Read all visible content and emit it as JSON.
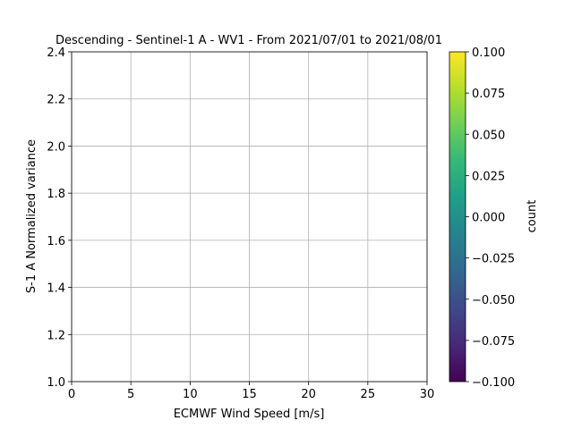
{
  "chart_data": {
    "type": "heatmap",
    "title": "Descending - Sentinel-1 A - WV1 - From 2021/07/01 to 2021/08/01",
    "xlabel": "ECMWF Wind Speed [m/s]",
    "ylabel": "S-1 A Normalized variance",
    "xlim": [
      0,
      30
    ],
    "xticks": [
      0,
      5,
      10,
      15,
      20,
      25,
      30
    ],
    "ylim": [
      1,
      2.4
    ],
    "yticks": [
      {
        "value": 1,
        "label": "1.0"
      },
      1.2,
      1.4,
      1.6,
      1.8,
      {
        "value": 2,
        "label": "2.0"
      },
      2.2,
      2.4
    ],
    "grid": true,
    "colormap": "viridis",
    "colorbar_label": "count",
    "clim": [
      -0.1,
      0.1
    ],
    "cticks": [
      {
        "value": -0.1,
        "label": "−0.100"
      },
      {
        "value": -0.075,
        "label": "−0.075"
      },
      {
        "value": -0.05,
        "label": "−0.050"
      },
      {
        "value": -0.025,
        "label": "−0.025"
      },
      {
        "value": 0,
        "label": "0.000"
      },
      0.025,
      {
        "value": 0.05,
        "label": "0.050"
      },
      0.075,
      {
        "value": 0.1,
        "label": "0.100"
      }
    ]
  }
}
